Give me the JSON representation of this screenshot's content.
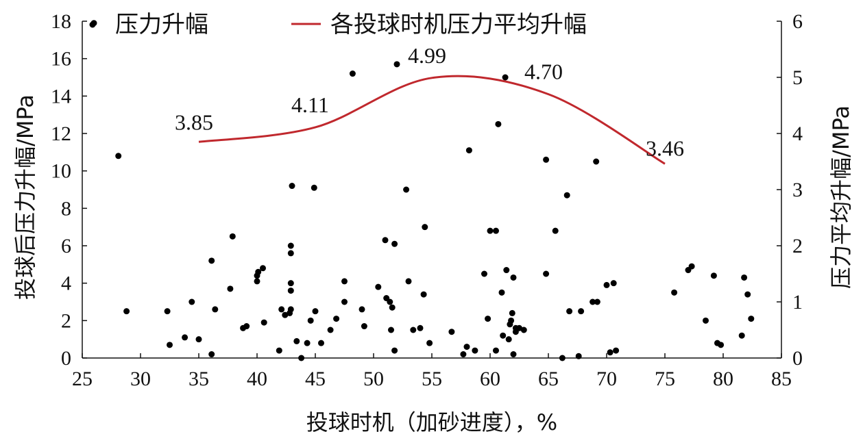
{
  "chart_data": {
    "type": "scatter",
    "xlabel": "投球时机（加砂进度），%",
    "ylabel_left": "投球后压力升幅/MPa",
    "ylabel_right": "压力平均升幅/MPa",
    "xlim": [
      25,
      85
    ],
    "ylim_left": [
      0,
      18
    ],
    "ylim_right": [
      0,
      6
    ],
    "x_ticks": [
      25,
      30,
      35,
      40,
      45,
      50,
      55,
      60,
      65,
      70,
      75,
      80,
      85
    ],
    "y_left_ticks": [
      0,
      2,
      4,
      6,
      8,
      10,
      12,
      14,
      16,
      18
    ],
    "y_right_ticks": [
      0,
      1,
      2,
      3,
      4,
      5,
      6
    ],
    "grid": false,
    "legend_position": "top",
    "colors": {
      "scatter": "#000000",
      "line": "#c0282d"
    },
    "series": [
      {
        "name": "压力升幅",
        "kind": "scatter",
        "axis": "left",
        "points": [
          [
            26.0,
            17.9
          ],
          [
            28.1,
            10.8
          ],
          [
            28.8,
            2.5
          ],
          [
            32.3,
            2.5
          ],
          [
            32.5,
            0.7
          ],
          [
            33.8,
            1.1
          ],
          [
            34.4,
            3.0
          ],
          [
            35.0,
            1.0
          ],
          [
            36.1,
            0.2
          ],
          [
            36.1,
            5.2
          ],
          [
            36.4,
            2.6
          ],
          [
            37.7,
            3.7
          ],
          [
            37.9,
            6.5
          ],
          [
            38.8,
            1.6
          ],
          [
            39.1,
            1.7
          ],
          [
            40.0,
            4.1
          ],
          [
            40.0,
            4.4
          ],
          [
            40.1,
            4.6
          ],
          [
            40.5,
            4.8
          ],
          [
            40.6,
            1.9
          ],
          [
            41.9,
            0.4
          ],
          [
            42.1,
            2.6
          ],
          [
            42.4,
            2.3
          ],
          [
            42.8,
            2.4
          ],
          [
            42.9,
            2.6
          ],
          [
            42.9,
            4.0
          ],
          [
            42.9,
            3.6
          ],
          [
            42.9,
            5.6
          ],
          [
            42.9,
            6.0
          ],
          [
            43.0,
            9.2
          ],
          [
            43.4,
            0.9
          ],
          [
            43.8,
            0.0
          ],
          [
            44.3,
            0.8
          ],
          [
            44.6,
            2.0
          ],
          [
            44.9,
            9.1
          ],
          [
            45.0,
            2.5
          ],
          [
            45.5,
            0.8
          ],
          [
            46.3,
            1.5
          ],
          [
            46.8,
            2.1
          ],
          [
            47.5,
            3.0
          ],
          [
            47.5,
            4.1
          ],
          [
            48.2,
            15.2
          ],
          [
            49.0,
            2.6
          ],
          [
            49.2,
            1.7
          ],
          [
            50.4,
            3.8
          ],
          [
            51.0,
            6.3
          ],
          [
            51.1,
            3.2
          ],
          [
            51.4,
            3.0
          ],
          [
            51.5,
            1.5
          ],
          [
            51.6,
            2.7
          ],
          [
            51.8,
            6.1
          ],
          [
            51.8,
            0.4
          ],
          [
            52.0,
            15.7
          ],
          [
            52.8,
            9.0
          ],
          [
            53.0,
            4.1
          ],
          [
            53.4,
            1.5
          ],
          [
            54.0,
            1.6
          ],
          [
            54.3,
            3.4
          ],
          [
            54.4,
            7.0
          ],
          [
            54.8,
            0.8
          ],
          [
            56.7,
            1.4
          ],
          [
            57.7,
            0.2
          ],
          [
            58.0,
            0.6
          ],
          [
            58.2,
            11.1
          ],
          [
            58.7,
            0.4
          ],
          [
            59.5,
            4.5
          ],
          [
            59.8,
            2.1
          ],
          [
            60.0,
            6.8
          ],
          [
            60.5,
            6.8
          ],
          [
            60.5,
            0.4
          ],
          [
            60.7,
            12.5
          ],
          [
            61.0,
            3.5
          ],
          [
            61.1,
            1.2
          ],
          [
            61.3,
            15.0
          ],
          [
            61.4,
            4.7
          ],
          [
            61.6,
            1.0
          ],
          [
            61.7,
            1.8
          ],
          [
            61.8,
            2.0
          ],
          [
            61.9,
            2.4
          ],
          [
            62.0,
            0.2
          ],
          [
            62.0,
            4.3
          ],
          [
            62.2,
            1.4
          ],
          [
            62.2,
            1.6
          ],
          [
            62.5,
            1.6
          ],
          [
            62.9,
            1.5
          ],
          [
            64.8,
            4.5
          ],
          [
            64.8,
            10.6
          ],
          [
            65.6,
            6.8
          ],
          [
            66.2,
            0.0
          ],
          [
            66.6,
            8.7
          ],
          [
            66.8,
            2.5
          ],
          [
            67.6,
            0.1
          ],
          [
            67.8,
            2.5
          ],
          [
            68.8,
            3.0
          ],
          [
            69.1,
            10.5
          ],
          [
            69.2,
            3.0
          ],
          [
            70.0,
            3.9
          ],
          [
            70.3,
            0.3
          ],
          [
            70.6,
            4.0
          ],
          [
            70.8,
            0.4
          ],
          [
            75.8,
            3.5
          ],
          [
            77.0,
            4.7
          ],
          [
            77.3,
            4.9
          ],
          [
            78.5,
            2.0
          ],
          [
            79.2,
            4.4
          ],
          [
            79.5,
            0.8
          ],
          [
            79.8,
            0.7
          ],
          [
            81.6,
            1.2
          ],
          [
            81.8,
            4.3
          ],
          [
            82.1,
            3.4
          ],
          [
            82.4,
            2.1
          ]
        ]
      },
      {
        "name": "各投球时机压力平均升幅",
        "kind": "line",
        "axis": "right",
        "x": [
          35,
          45,
          55,
          65,
          75
        ],
        "y": [
          3.85,
          4.11,
          4.99,
          4.7,
          3.46
        ],
        "smooth": true,
        "labels": [
          "3.85",
          "4.11",
          "4.99",
          "4.70",
          "3.46"
        ]
      }
    ]
  }
}
